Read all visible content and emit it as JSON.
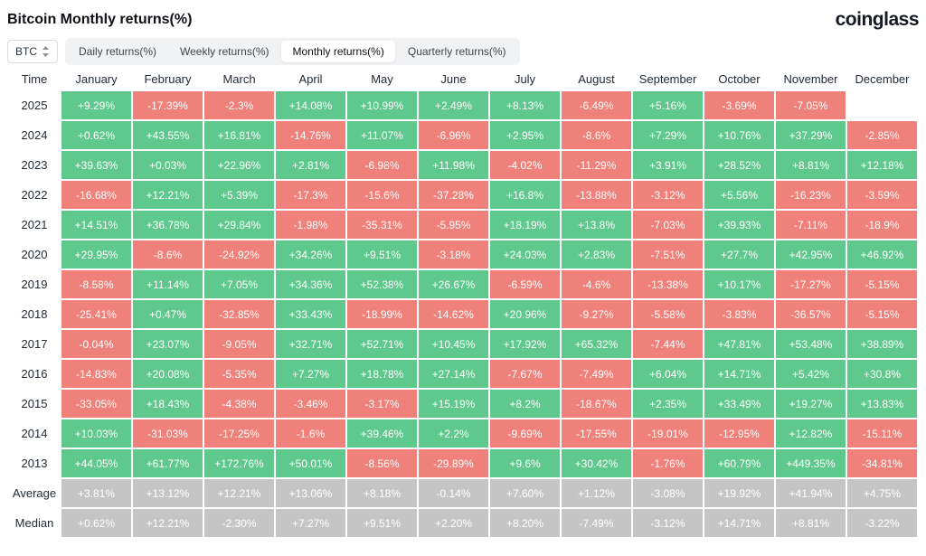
{
  "header": {
    "title": "Bitcoin Monthly returns(%)",
    "logo": "coinglass"
  },
  "controls": {
    "symbol": "BTC",
    "tabs": [
      {
        "label": "Daily returns(%)",
        "active": false
      },
      {
        "label": "Weekly returns(%)",
        "active": false
      },
      {
        "label": "Monthly returns(%)",
        "active": true
      },
      {
        "label": "Quarterly returns(%)",
        "active": false
      }
    ]
  },
  "chart_data": {
    "type": "heatmap",
    "title": "Bitcoin Monthly returns(%)",
    "columns": [
      "Time",
      "January",
      "February",
      "March",
      "April",
      "May",
      "June",
      "July",
      "August",
      "September",
      "October",
      "November",
      "December"
    ],
    "rows": [
      {
        "label": "2025",
        "summary": false,
        "values": [
          "+9.29%",
          "-17.39%",
          "-2.3%",
          "+14.08%",
          "+10.99%",
          "+2.49%",
          "+8.13%",
          "-6.49%",
          "+5.16%",
          "-3.69%",
          "-7.05%",
          ""
        ]
      },
      {
        "label": "2024",
        "summary": false,
        "values": [
          "+0.62%",
          "+43.55%",
          "+16.81%",
          "-14.76%",
          "+11.07%",
          "-6.96%",
          "+2.95%",
          "-8.6%",
          "+7.29%",
          "+10.76%",
          "+37.29%",
          "-2.85%"
        ]
      },
      {
        "label": "2023",
        "summary": false,
        "values": [
          "+39.63%",
          "+0.03%",
          "+22.96%",
          "+2.81%",
          "-6.98%",
          "+11.98%",
          "-4.02%",
          "-11.29%",
          "+3.91%",
          "+28.52%",
          "+8.81%",
          "+12.18%"
        ]
      },
      {
        "label": "2022",
        "summary": false,
        "values": [
          "-16.68%",
          "+12.21%",
          "+5.39%",
          "-17.3%",
          "-15.6%",
          "-37.28%",
          "+16.8%",
          "-13.88%",
          "-3.12%",
          "+5.56%",
          "-16.23%",
          "-3.59%"
        ]
      },
      {
        "label": "2021",
        "summary": false,
        "values": [
          "+14.51%",
          "+36.78%",
          "+29.84%",
          "-1.98%",
          "-35.31%",
          "-5.95%",
          "+18.19%",
          "+13.8%",
          "-7.03%",
          "+39.93%",
          "-7.11%",
          "-18.9%"
        ]
      },
      {
        "label": "2020",
        "summary": false,
        "values": [
          "+29.95%",
          "-8.6%",
          "-24.92%",
          "+34.26%",
          "+9.51%",
          "-3.18%",
          "+24.03%",
          "+2.83%",
          "-7.51%",
          "+27.7%",
          "+42.95%",
          "+46.92%"
        ]
      },
      {
        "label": "2019",
        "summary": false,
        "values": [
          "-8.58%",
          "+11.14%",
          "+7.05%",
          "+34.36%",
          "+52.38%",
          "+26.67%",
          "-6.59%",
          "-4.6%",
          "-13.38%",
          "+10.17%",
          "-17.27%",
          "-5.15%"
        ]
      },
      {
        "label": "2018",
        "summary": false,
        "values": [
          "-25.41%",
          "+0.47%",
          "-32.85%",
          "+33.43%",
          "-18.99%",
          "-14.62%",
          "+20.96%",
          "-9.27%",
          "-5.58%",
          "-3.83%",
          "-36.57%",
          "-5.15%"
        ]
      },
      {
        "label": "2017",
        "summary": false,
        "values": [
          "-0.04%",
          "+23.07%",
          "-9.05%",
          "+32.71%",
          "+52.71%",
          "+10.45%",
          "+17.92%",
          "+65.32%",
          "-7.44%",
          "+47.81%",
          "+53.48%",
          "+38.89%"
        ]
      },
      {
        "label": "2016",
        "summary": false,
        "values": [
          "-14.83%",
          "+20.08%",
          "-5.35%",
          "+7.27%",
          "+18.78%",
          "+27.14%",
          "-7.67%",
          "-7.49%",
          "+6.04%",
          "+14.71%",
          "+5.42%",
          "+30.8%"
        ]
      },
      {
        "label": "2015",
        "summary": false,
        "values": [
          "-33.05%",
          "+18.43%",
          "-4.38%",
          "-3.46%",
          "-3.17%",
          "+15.19%",
          "+8.2%",
          "-18.67%",
          "+2.35%",
          "+33.49%",
          "+19.27%",
          "+13.83%"
        ]
      },
      {
        "label": "2014",
        "summary": false,
        "values": [
          "+10.03%",
          "-31.03%",
          "-17.25%",
          "-1.6%",
          "+39.46%",
          "+2.2%",
          "-9.69%",
          "-17.55%",
          "-19.01%",
          "-12.95%",
          "+12.82%",
          "-15.11%"
        ]
      },
      {
        "label": "2013",
        "summary": false,
        "values": [
          "+44.05%",
          "+61.77%",
          "+172.76%",
          "+50.01%",
          "-8.56%",
          "-29.89%",
          "+9.6%",
          "+30.42%",
          "-1.76%",
          "+60.79%",
          "+449.35%",
          "-34.81%"
        ]
      },
      {
        "label": "Average",
        "summary": true,
        "values": [
          "+3.81%",
          "+13.12%",
          "+12.21%",
          "+13.06%",
          "+8.18%",
          "-0.14%",
          "+7.60%",
          "+1.12%",
          "-3.08%",
          "+19.92%",
          "+41.94%",
          "+4.75%"
        ]
      },
      {
        "label": "Median",
        "summary": true,
        "values": [
          "+0.62%",
          "+12.21%",
          "-2.30%",
          "+7.27%",
          "+9.51%",
          "+2.20%",
          "+8.20%",
          "-7.49%",
          "-3.12%",
          "+14.71%",
          "+8.81%",
          "-3.22%"
        ]
      }
    ],
    "colors": {
      "positive": "#5fc88c",
      "negative": "#f0807a",
      "summary": "#c5c5c5"
    },
    "legend_position": "none",
    "grid": false
  }
}
